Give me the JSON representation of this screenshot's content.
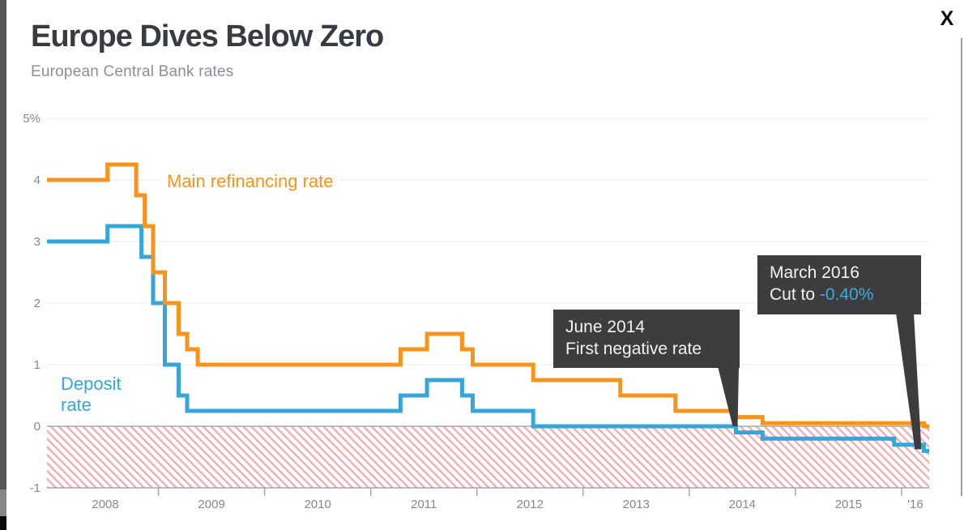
{
  "window": {
    "close_label": "X"
  },
  "chart_data": {
    "type": "line",
    "title": "Europe Dives Below Zero",
    "subtitle": "European Central Bank rates",
    "unit": "%",
    "step": "after",
    "grid": "horizontal",
    "legend_position": "inline-labels",
    "x_range": [
      2007.95,
      2016.26
    ],
    "y_range": [
      -1,
      5
    ],
    "y_ticks": [
      {
        "v": 5,
        "label": "5%"
      },
      {
        "v": 4,
        "label": "4"
      },
      {
        "v": 3,
        "label": "3"
      },
      {
        "v": 2,
        "label": "2"
      },
      {
        "v": 1,
        "label": "1"
      },
      {
        "v": 0,
        "label": "0"
      },
      {
        "v": -1,
        "label": "-1"
      }
    ],
    "x_boundary_ticks": [
      2009,
      2010,
      2011,
      2012,
      2013,
      2014,
      2015,
      2016
    ],
    "x_labels": [
      {
        "label": "2008",
        "x": 2008.5
      },
      {
        "label": "2009",
        "x": 2009.5
      },
      {
        "label": "2010",
        "x": 2010.5
      },
      {
        "label": "2011",
        "x": 2011.5
      },
      {
        "label": "2012",
        "x": 2012.5
      },
      {
        "label": "2013",
        "x": 2013.5
      },
      {
        "label": "2014",
        "x": 2014.5
      },
      {
        "label": "2015",
        "x": 2015.5
      },
      {
        "label": "'16",
        "x": 2016.13
      }
    ],
    "series": [
      {
        "name": "Main refinancing rate",
        "color": "#f8941d",
        "points": [
          [
            2007.95,
            4.0
          ],
          [
            2008.52,
            4.25
          ],
          [
            2008.79,
            3.75
          ],
          [
            2008.87,
            3.25
          ],
          [
            2008.95,
            2.5
          ],
          [
            2009.06,
            2.0
          ],
          [
            2009.19,
            1.5
          ],
          [
            2009.27,
            1.25
          ],
          [
            2009.37,
            1.0
          ],
          [
            2011.28,
            1.25
          ],
          [
            2011.53,
            1.5
          ],
          [
            2011.86,
            1.25
          ],
          [
            2011.96,
            1.0
          ],
          [
            2012.53,
            0.75
          ],
          [
            2013.35,
            0.5
          ],
          [
            2013.87,
            0.25
          ],
          [
            2014.44,
            0.15
          ],
          [
            2014.69,
            0.05
          ],
          [
            2016.21,
            0.0
          ]
        ]
      },
      {
        "name": "Deposit rate",
        "label_lines": [
          "Deposit",
          "rate"
        ],
        "color": "#36a5d9",
        "points": [
          [
            2007.95,
            3.0
          ],
          [
            2008.52,
            3.25
          ],
          [
            2008.84,
            2.75
          ],
          [
            2008.95,
            2.0
          ],
          [
            2009.06,
            1.0
          ],
          [
            2009.19,
            0.5
          ],
          [
            2009.27,
            0.25
          ],
          [
            2011.28,
            0.5
          ],
          [
            2011.53,
            0.75
          ],
          [
            2011.86,
            0.5
          ],
          [
            2011.96,
            0.25
          ],
          [
            2012.53,
            0.0
          ],
          [
            2014.44,
            -0.1
          ],
          [
            2014.69,
            -0.2
          ],
          [
            2015.93,
            -0.3
          ],
          [
            2016.21,
            -0.4
          ]
        ]
      }
    ],
    "negative_zone": {
      "from": 0,
      "to": -1,
      "hatch_color": "#e7787d"
    },
    "annotations": [
      {
        "line1": "June 2014",
        "line2": "First negative rate",
        "target_x": 2014.44,
        "target_y": 0
      },
      {
        "line1": "March 2016",
        "line2_prefix": "Cut to ",
        "line2_value": "-0.40%",
        "value_color": "#41a8d8",
        "target_x": 2016.21,
        "target_y": -0.4
      }
    ]
  }
}
